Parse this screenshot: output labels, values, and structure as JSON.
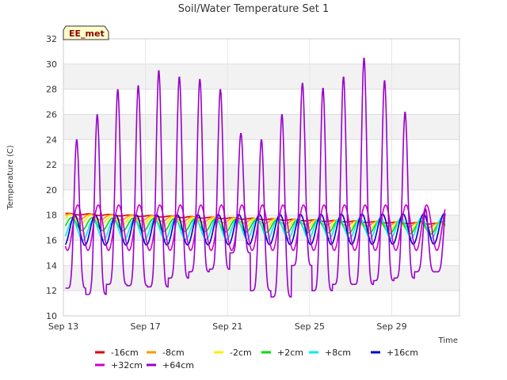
{
  "chart_data": {
    "type": "line",
    "title": "Soil/Water Temperature Set 1",
    "xlabel": "Time",
    "ylabel": "Temperature (C)",
    "badge": "EE_met",
    "xlim": [
      0,
      19.3
    ],
    "ylim": [
      10,
      32
    ],
    "x_ticks": [
      {
        "value": 0,
        "label": "Sep 13"
      },
      {
        "value": 4,
        "label": "Sep 17"
      },
      {
        "value": 8,
        "label": "Sep 21"
      },
      {
        "value": 12,
        "label": "Sep 25"
      },
      {
        "value": 16,
        "label": "Sep 29"
      }
    ],
    "y_ticks": [
      10,
      12,
      14,
      16,
      18,
      20,
      22,
      24,
      26,
      28,
      30,
      32
    ],
    "grid": true,
    "legend_position": "bottom",
    "series": [
      {
        "name": "-16cm",
        "color": "#dd0000",
        "start": 18.1,
        "end": 17.3,
        "amp": 0.05,
        "phase": 0,
        "peaks": null
      },
      {
        "name": "-8cm",
        "color": "#ff9900",
        "start": 17.9,
        "end": 17.2,
        "amp": 0.2,
        "phase": 0.05,
        "peaks": null
      },
      {
        "name": "-2cm",
        "color": "#ffee00",
        "start": 17.7,
        "end": 17.0,
        "amp": 0.35,
        "phase": 0.1,
        "peaks": null
      },
      {
        "name": "+2cm",
        "color": "#00dd00",
        "start": 17.3,
        "end": 17.0,
        "amp": 0.5,
        "phase": 0.15,
        "peaks": null
      },
      {
        "name": "+8cm",
        "color": "#00eeee",
        "start": 16.8,
        "end": 17.0,
        "amp": 0.8,
        "phase": 0.2,
        "peaks": null
      },
      {
        "name": "+16cm",
        "color": "#0000cc",
        "start": 16.8,
        "end": 16.9,
        "amp": 1.2,
        "phase": 0.3,
        "peaks": null
      },
      {
        "name": "+32cm",
        "color": "#cc00cc",
        "start": 17.0,
        "end": 17.0,
        "amp": 1.8,
        "phase": 0.45,
        "peaks": null
      },
      {
        "name": "+64cm",
        "color": "#9900cc",
        "start": 17.0,
        "end": 17.0,
        "amp": 0,
        "phase": 0.55,
        "peaks": [
          24.0,
          26.0,
          28.0,
          28.3,
          29.5,
          29.0,
          28.8,
          28.0,
          24.5,
          24.0,
          26.0,
          28.5,
          28.1,
          29.0,
          30.5,
          28.7,
          26.2,
          18.5
        ],
        "troughs": [
          12.2,
          11.7,
          12.5,
          12.4,
          12.3,
          13.0,
          13.5,
          13.7,
          15.0,
          12.0,
          11.5,
          14.0,
          12.0,
          12.5,
          12.5,
          12.8,
          13.0,
          13.5
        ]
      }
    ]
  }
}
